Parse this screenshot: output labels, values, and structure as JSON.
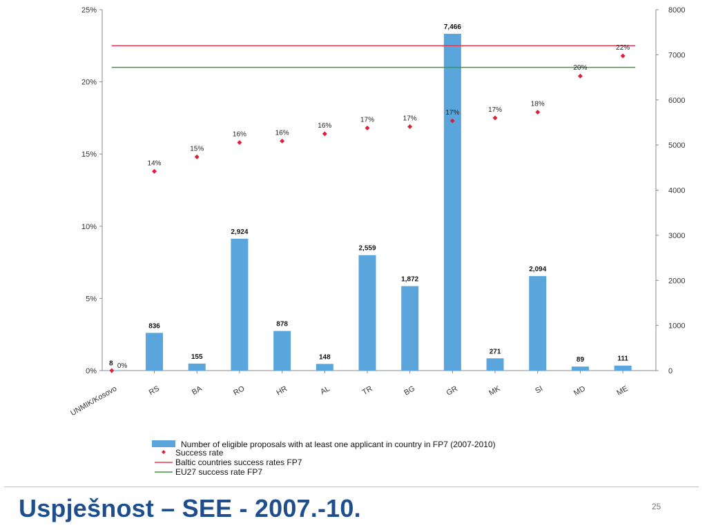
{
  "slide": {
    "title": "Uspješnost – SEE - 2007.-10.",
    "page_number": "25"
  },
  "chart_data": {
    "type": "bar",
    "categories": [
      "UNMIK/Kosovo",
      "RS",
      "BA",
      "RO",
      "HR",
      "AL",
      "TR",
      "BG",
      "GR",
      "MK",
      "SI",
      "MD",
      "ME"
    ],
    "series": [
      {
        "name": "Number of eligible proposals with at least one applicant in country  in FP7 (2007-2010)",
        "kind": "bar",
        "axis": "right",
        "color": "#5aa5dc",
        "values": [
          8,
          836,
          155,
          2924,
          878,
          148,
          2559,
          1872,
          7466,
          271,
          2094,
          89,
          111
        ],
        "labels": [
          "8",
          "836",
          "155",
          "2,924",
          "878",
          "148",
          "2,559",
          "1,872",
          "7,466",
          "271",
          "2,094",
          "89",
          "111"
        ]
      },
      {
        "name": "Success rate",
        "kind": "scatter",
        "axis": "left",
        "color": "#e0203a",
        "values": [
          0,
          13.8,
          14.8,
          15.8,
          15.9,
          16.4,
          16.8,
          16.9,
          17.3,
          17.5,
          17.9,
          20.4,
          21.8
        ],
        "labels": [
          "0%",
          "14%",
          "15%",
          "16%",
          "16%",
          "16%",
          "17%",
          "17%",
          "17%",
          "17%",
          "18%",
          "20%",
          "22%"
        ]
      },
      {
        "name": "Baltic countries success rates FP7",
        "kind": "hline",
        "axis": "left",
        "color": "#e8384f",
        "value": 22.5
      },
      {
        "name": "EU27 success rate FP7",
        "kind": "hline",
        "axis": "left",
        "color": "#3a9a3a",
        "value": 21.0
      }
    ],
    "y_left": {
      "ylim": [
        0,
        25
      ],
      "ticks": [
        0,
        5,
        10,
        15,
        20,
        25
      ],
      "tick_labels": [
        "0%",
        "5%",
        "10%",
        "15%",
        "20%",
        "25%"
      ]
    },
    "y_right": {
      "ylim": [
        0,
        8000
      ],
      "ticks": [
        0,
        1000,
        2000,
        3000,
        4000,
        5000,
        6000,
        7000,
        8000
      ],
      "tick_labels": [
        "0",
        "1000",
        "2000",
        "3000",
        "4000",
        "5000",
        "6000",
        "7000",
        "8000"
      ]
    },
    "grid": false,
    "legend_position": "bottom"
  }
}
